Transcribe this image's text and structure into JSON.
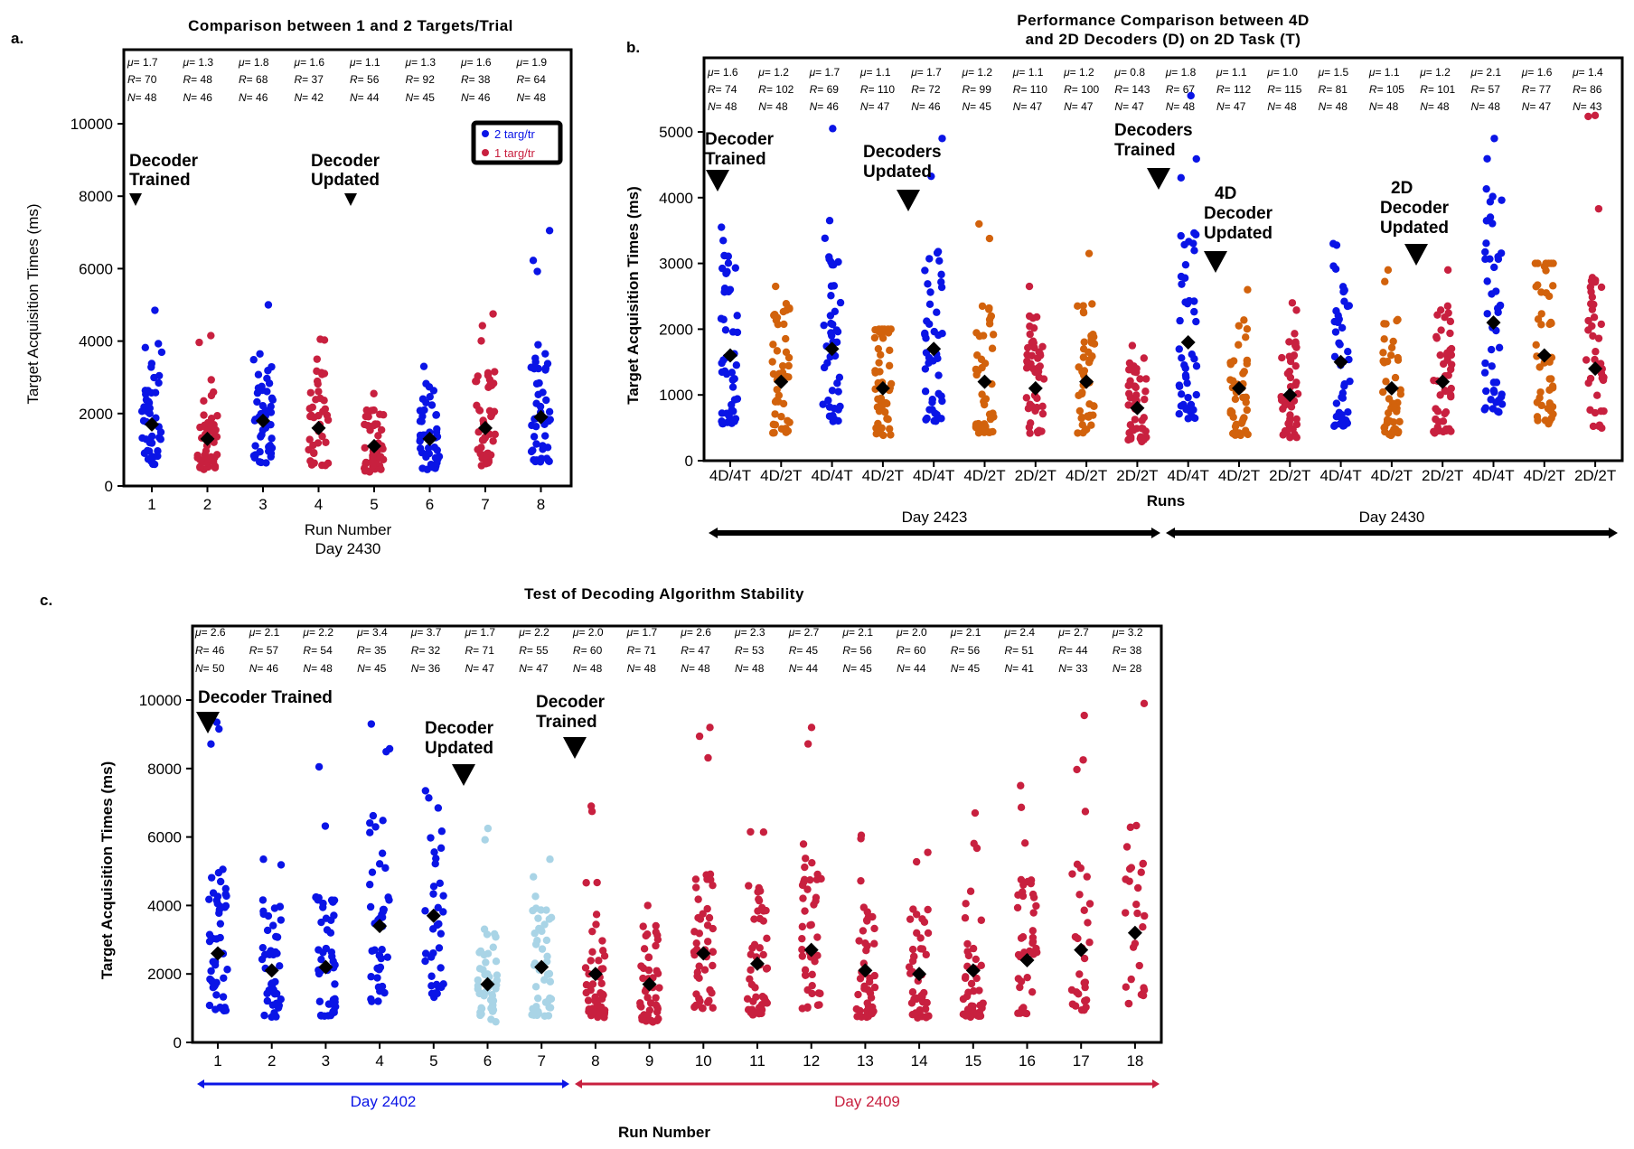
{
  "chart_data": [
    {
      "panel": "a.",
      "type": "scatter",
      "title": "Comparison between 1 and 2 Targets/Trial",
      "xlabel": "Run Number",
      "xsublabel": "Day 2430",
      "ylabel": "Target Acquisition Times (ms)",
      "ylim": [
        0,
        10000
      ],
      "yticks": [
        0,
        2000,
        4000,
        6000,
        8000,
        10000
      ],
      "categories": [
        "1",
        "2",
        "3",
        "4",
        "5",
        "6",
        "7",
        "8"
      ],
      "legend": {
        "position": "top-right",
        "entries": [
          {
            "label": "2 targ/tr",
            "color": "#0a14e6"
          },
          {
            "label": "1 targ/tr",
            "color": "#c8203f"
          }
        ]
      },
      "series_per_category": [
        "2 targ/tr",
        "1 targ/tr",
        "2 targ/tr",
        "1 targ/tr",
        "1 targ/tr",
        "2 targ/tr",
        "1 targ/tr",
        "2 targ/tr"
      ],
      "stats": {
        "mu": [
          "1.7",
          "1.3",
          "1.8",
          "1.6",
          "1.1",
          "1.3",
          "1.6",
          "1.9"
        ],
        "R": [
          "70",
          "48",
          "68",
          "37",
          "56",
          "92",
          "38",
          "64"
        ],
        "N": [
          "48",
          "46",
          "46",
          "42",
          "44",
          "45",
          "46",
          "48"
        ]
      },
      "means_ms": [
        1700,
        1300,
        1800,
        1600,
        1100,
        1300,
        1600,
        1900
      ],
      "max_ms": [
        4850,
        4150,
        5000,
        4050,
        2550,
        3300,
        4750,
        7050
      ],
      "annotations": [
        {
          "text": "Decoder Trained",
          "before_category": "1"
        },
        {
          "text": "Decoder Updated",
          "before_category": "5"
        }
      ]
    },
    {
      "panel": "b.",
      "type": "scatter",
      "title": "Performance Comparison between 4D and 2D Decoders (D) on 2D Task (T)",
      "title_lines": [
        "Performance Comparison between 4D",
        "and 2D Decoders (D) on 2D Task (T)"
      ],
      "xlabel": "Runs",
      "ylabel": "Target Acquisition Times (ms)",
      "ylim": [
        0,
        5000
      ],
      "yticks": [
        0,
        1000,
        2000,
        3000,
        4000,
        5000
      ],
      "categories": [
        "4D/4T",
        "4D/2T",
        "4D/4T",
        "4D/2T",
        "4D/4T",
        "4D/2T",
        "2D/2T",
        "4D/2T",
        "2D/2T",
        "4D/4T",
        "4D/2T",
        "2D/2T",
        "4D/4T",
        "4D/2T",
        "2D/2T",
        "4D/4T",
        "4D/2T",
        "2D/2T"
      ],
      "colors": {
        "4D/4T": "#0a14e6",
        "4D/2T": "#d2620c",
        "2D/2T": "#c8203f"
      },
      "stats": {
        "mu": [
          "1.6",
          "1.2",
          "1.7",
          "1.1",
          "1.7",
          "1.2",
          "1.1",
          "1.2",
          "0.8",
          "1.8",
          "1.1",
          "1.0",
          "1.5",
          "1.1",
          "1.2",
          "2.1",
          "1.6",
          "1.4"
        ],
        "R": [
          "74",
          "102",
          "69",
          "110",
          "72",
          "99",
          "110",
          "100",
          "143",
          "67",
          "112",
          "115",
          "81",
          "105",
          "101",
          "57",
          "77",
          "86"
        ],
        "N": [
          "48",
          "48",
          "46",
          "47",
          "46",
          "45",
          "47",
          "47",
          "47",
          "48",
          "47",
          "48",
          "48",
          "48",
          "48",
          "48",
          "47",
          "43"
        ]
      },
      "means_ms": [
        1600,
        1200,
        1700,
        1100,
        1700,
        1200,
        1100,
        1200,
        800,
        1800,
        1100,
        1000,
        1500,
        1100,
        1200,
        2100,
        1600,
        1400
      ],
      "max_ms": [
        3550,
        2650,
        5050,
        2000,
        4900,
        3600,
        2650,
        3150,
        1750,
        5550,
        2600,
        2400,
        3300,
        2900,
        2900,
        4900,
        3000,
        5250
      ],
      "annotations": [
        {
          "text": "Decoder Trained",
          "before_category_index": 0
        },
        {
          "text": "Decoders Updated",
          "before_category_index": 4
        },
        {
          "text": "Decoders Trained",
          "before_category_index": 9
        },
        {
          "text": "4D Decoder Updated",
          "before_category_index": 10
        },
        {
          "text": "2D Decoder Updated",
          "before_category_index": 14
        }
      ],
      "day_ranges": [
        {
          "label": "Day 2423",
          "from_index": 0,
          "to_index": 8,
          "color": "#000000"
        },
        {
          "label": "Day 2430",
          "from_index": 9,
          "to_index": 17,
          "color": "#000000"
        }
      ]
    },
    {
      "panel": "c.",
      "type": "scatter",
      "title": "Test of Decoding Algorithm Stability",
      "xlabel": "Run Number",
      "ylabel": "Target Acquisition Times (ms)",
      "ylim": [
        0,
        10000
      ],
      "yticks": [
        0,
        2000,
        4000,
        6000,
        8000,
        10000
      ],
      "categories": [
        "1",
        "2",
        "3",
        "4",
        "5",
        "6",
        "7",
        "8",
        "9",
        "10",
        "11",
        "12",
        "13",
        "14",
        "15",
        "16",
        "17",
        "18"
      ],
      "point_colors": [
        "#0a14e6",
        "#0a14e6",
        "#0a14e6",
        "#0a14e6",
        "#0a14e6",
        "#a9d4e6",
        "#a9d4e6",
        "#c8203f",
        "#c8203f",
        "#c8203f",
        "#c8203f",
        "#c8203f",
        "#c8203f",
        "#c8203f",
        "#c8203f",
        "#c8203f",
        "#c8203f",
        "#c8203f"
      ],
      "stats": {
        "mu": [
          "2.6",
          "2.1",
          "2.2",
          "3.4",
          "3.7",
          "1.7",
          "2.2",
          "2.0",
          "1.7",
          "2.6",
          "2.3",
          "2.7",
          "2.1",
          "2.0",
          "2.1",
          "2.4",
          "2.7",
          "3.2"
        ],
        "R": [
          "46",
          "57",
          "54",
          "35",
          "32",
          "71",
          "55",
          "60",
          "71",
          "47",
          "53",
          "45",
          "56",
          "60",
          "56",
          "51",
          "44",
          "38"
        ],
        "N": [
          "50",
          "46",
          "48",
          "45",
          "36",
          "47",
          "47",
          "48",
          "48",
          "48",
          "48",
          "44",
          "45",
          "44",
          "45",
          "41",
          "33",
          "28"
        ]
      },
      "means_ms": [
        2600,
        2100,
        2200,
        3400,
        3700,
        1700,
        2200,
        2000,
        1700,
        2600,
        2300,
        2700,
        2100,
        2000,
        2100,
        2400,
        2700,
        3200
      ],
      "max_ms": [
        9350,
        5350,
        8050,
        9300,
        7350,
        6250,
        5350,
        6900,
        4000,
        9200,
        6150,
        9200,
        6050,
        5550,
        6700,
        7500,
        9550,
        9900
      ],
      "annotations": [
        {
          "text": "Decoder Trained",
          "before_category": "1"
        },
        {
          "text": "Decoder Updated",
          "before_category": "6"
        },
        {
          "text": "Decoder Trained",
          "before_category": "8"
        }
      ],
      "day_ranges": [
        {
          "label": "Day 2402",
          "from_index": 0,
          "to_index": 6,
          "color": "#0a14e6"
        },
        {
          "label": "Day 2409",
          "from_index": 7,
          "to_index": 17,
          "color": "#c8203f"
        }
      ]
    }
  ]
}
